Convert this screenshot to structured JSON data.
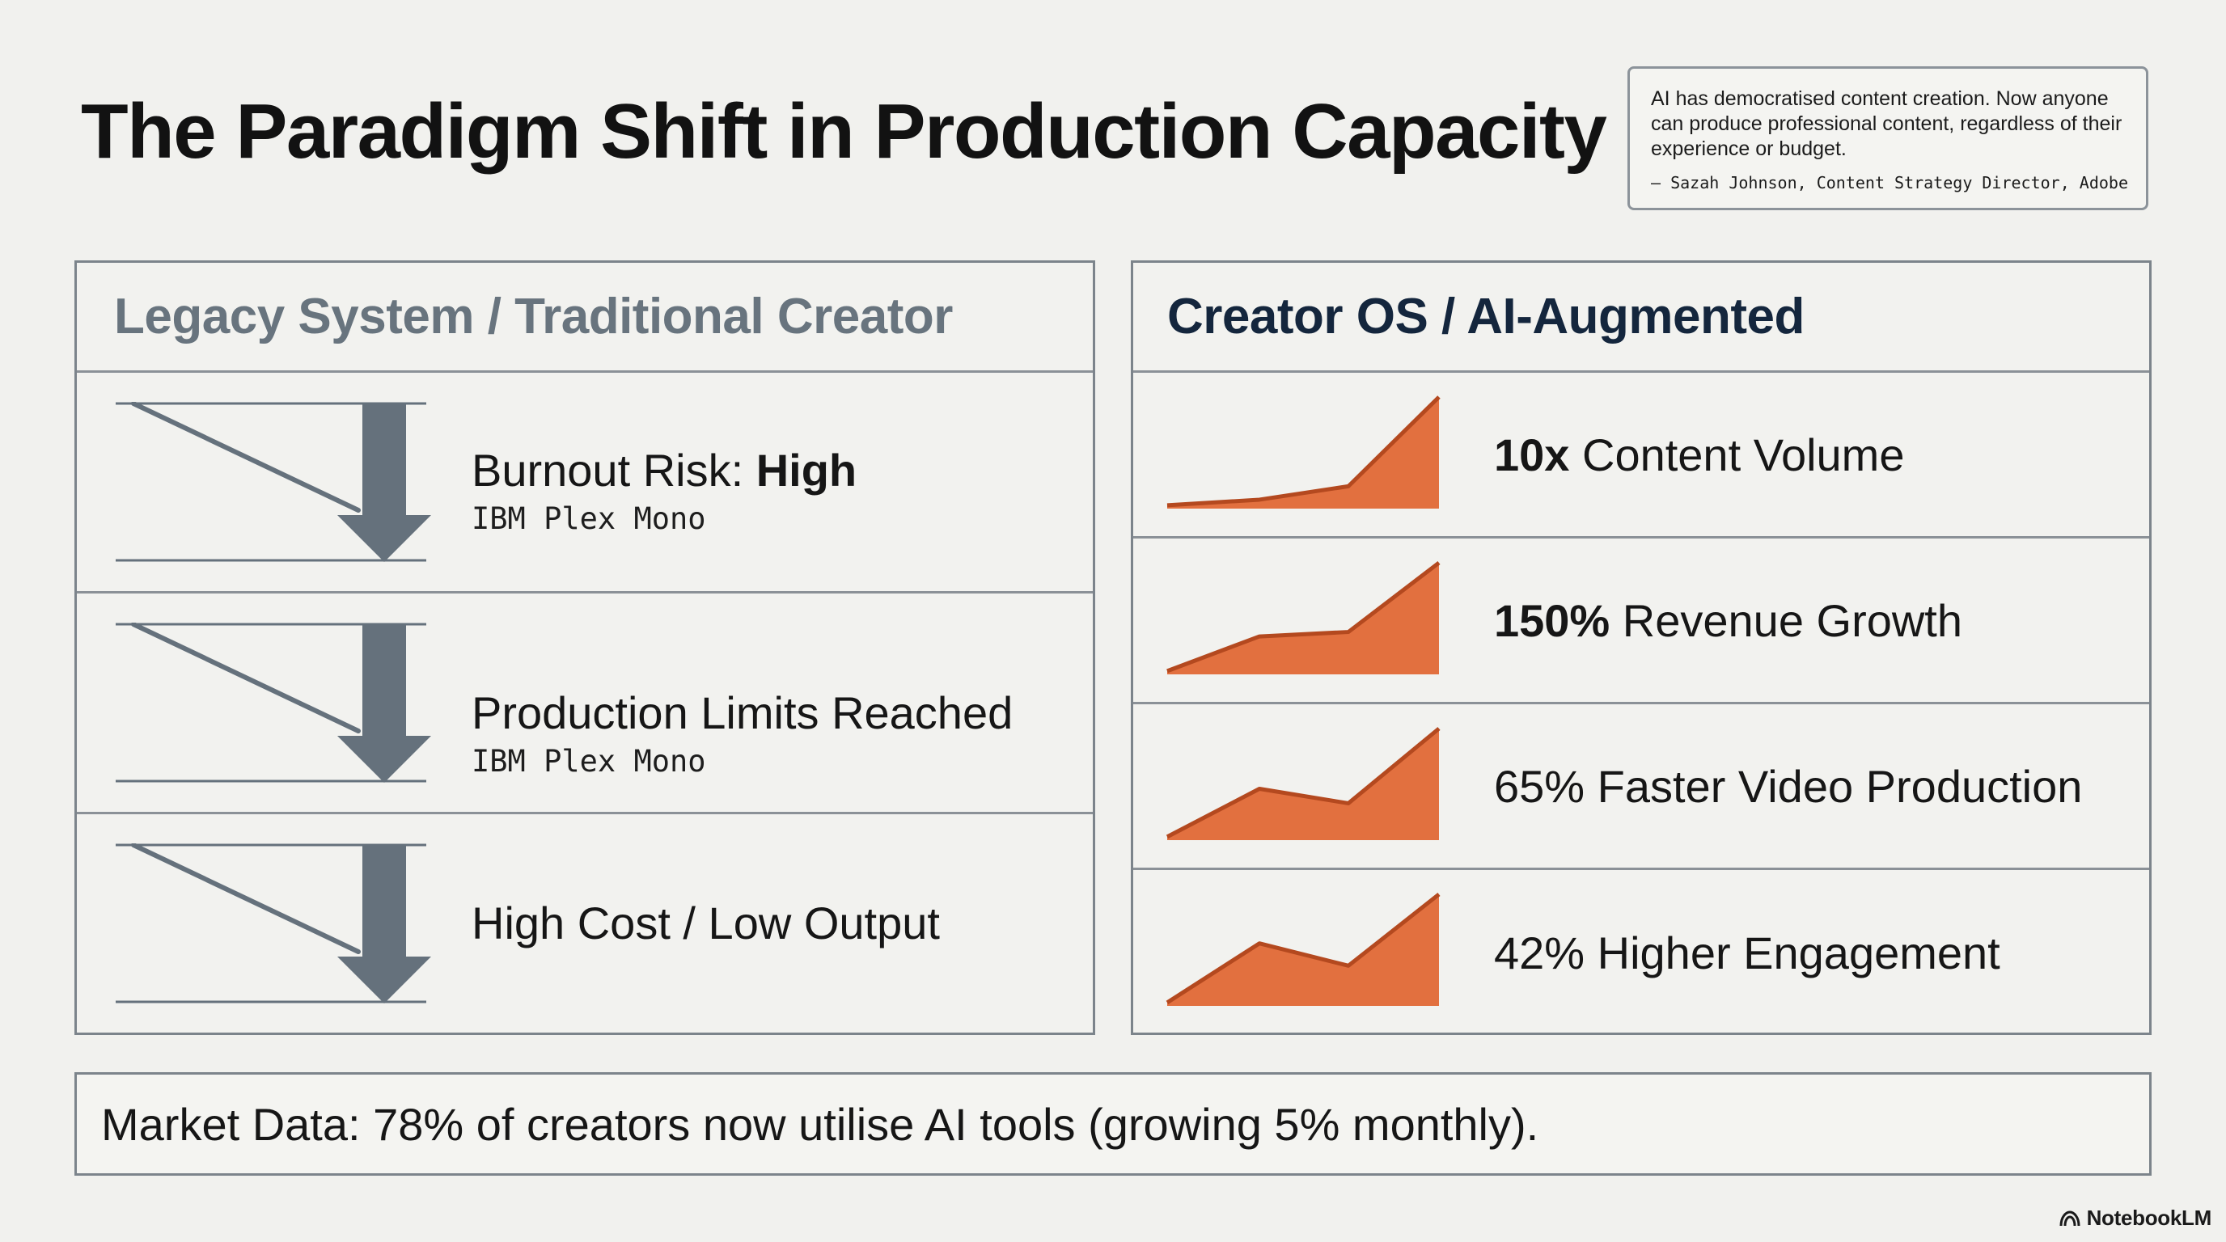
{
  "title": "The Paradigm Shift in Production Capacity",
  "quote": {
    "text": "AI has democratised content creation. Now anyone can produce professional content, regardless of their experience or budget.",
    "attribution": "— Sazah Johnson, Content Strategy Director, Adobe"
  },
  "legacy": {
    "header": "Legacy System / Traditional Creator",
    "rows": [
      {
        "label": "Burnout Risk: ",
        "emphasis": "High",
        "sub": "IBM Plex Mono"
      },
      {
        "label": "Production Limits Reached",
        "emphasis": "",
        "sub": "IBM Plex Mono"
      },
      {
        "label": "High Cost / Low Output",
        "emphasis": "",
        "sub": ""
      }
    ],
    "icon": "declining-trend-down-arrow-icon",
    "icon_color": "#65717c"
  },
  "augmented": {
    "header": "Creator OS / AI-Augmented",
    "accent": "#e2703f",
    "rows": [
      {
        "strong": "10x",
        "label": " Content Volume",
        "trend": [
          0.03,
          0.08,
          0.2,
          1.0
        ]
      },
      {
        "strong": "150%",
        "label": " Revenue Growth",
        "trend": [
          0.03,
          0.34,
          0.38,
          1.0
        ]
      },
      {
        "strong": "",
        "label": "65% Faster Video Production",
        "trend": [
          0.03,
          0.46,
          0.33,
          1.0
        ]
      },
      {
        "strong": "",
        "label": "42% Higher Engagement",
        "trend": [
          0.03,
          0.56,
          0.36,
          1.0
        ]
      }
    ]
  },
  "market": "Market Data: 78% of creators now utilise AI tools (growing 5% monthly).",
  "brand": "NotebookLM"
}
